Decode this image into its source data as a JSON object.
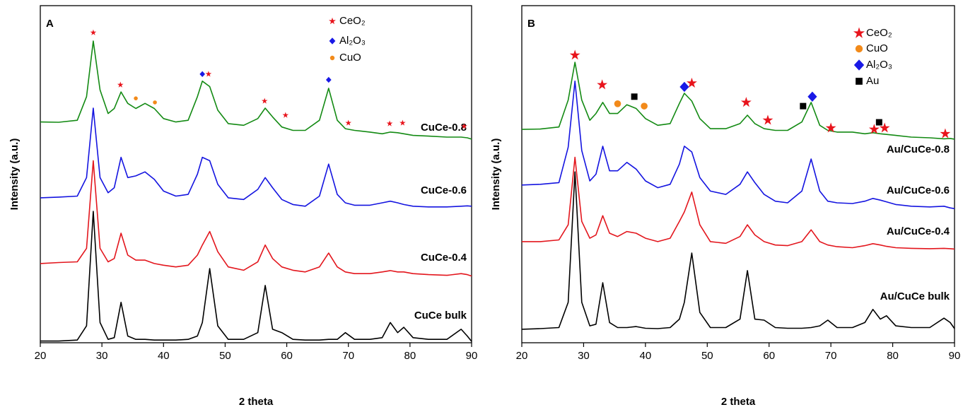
{
  "chart_data": [
    {
      "type": "line",
      "panel": "A",
      "xlabel": "2 theta",
      "ylabel": "Intensity (a.u.)",
      "xlim": [
        20,
        90
      ],
      "xticks": [
        20,
        30,
        40,
        50,
        60,
        70,
        80,
        90
      ],
      "ylim": [
        0,
        100
      ],
      "x": [
        20,
        23,
        26,
        27.5,
        28.6,
        29.7,
        31,
        32,
        33.1,
        34.2,
        35.5,
        37,
        38.5,
        40,
        42,
        44,
        45.5,
        46.3,
        47.5,
        48.8,
        50.5,
        53,
        55.3,
        56.5,
        57.7,
        59.2,
        61,
        63,
        65.3,
        66.8,
        68.2,
        69.5,
        71,
        73.5,
        75.5,
        76.8,
        78,
        79,
        80.5,
        83,
        86,
        88.3,
        89.3,
        90
      ],
      "series": [
        {
          "name": "CuCe bulk",
          "color": "#000000",
          "values": [
            0.5,
            0.5,
            0.8,
            5,
            39,
            6,
            1,
            1.5,
            12,
            2,
            1,
            1,
            0.8,
            0.8,
            0.8,
            1,
            2,
            6,
            22,
            5,
            1,
            1,
            3,
            17,
            4,
            3,
            1,
            0.8,
            0.8,
            1,
            1,
            3,
            1,
            1,
            1.5,
            6,
            3,
            4.6,
            1.5,
            1,
            1,
            4,
            2,
            0.4
          ]
        },
        {
          "name": "CuCe-0.4",
          "color": "#e3161d",
          "values": [
            23.5,
            23.8,
            24,
            28,
            54,
            28,
            24,
            25,
            32.5,
            26,
            24.5,
            24.5,
            23.5,
            23,
            22.5,
            23,
            26,
            29,
            33,
            27,
            22.5,
            21.5,
            24,
            29,
            25,
            22.5,
            21.5,
            21,
            22.5,
            26.6,
            22.5,
            21,
            20.5,
            20.5,
            21,
            21.4,
            21,
            21,
            20.5,
            20.2,
            20,
            20.5,
            20.2,
            19.8
          ]
        },
        {
          "name": "CuCe-0.6",
          "color": "#1414e0",
          "values": [
            43,
            43.2,
            43.5,
            49,
            69.6,
            49,
            44.5,
            46,
            55,
            49,
            49.5,
            50.7,
            48.5,
            45,
            43.5,
            44,
            50,
            55,
            54,
            47,
            43,
            42.5,
            45.5,
            49,
            46,
            42.5,
            41,
            40.5,
            43.5,
            53,
            44,
            41.5,
            40.8,
            40.8,
            41.5,
            42,
            41.5,
            41,
            40.5,
            40.3,
            40.3,
            40.5,
            40.6,
            40.5
          ]
        },
        {
          "name": "CuCe-0.8",
          "color": "#138a13",
          "values": [
            65.5,
            65.4,
            66,
            73,
            89.5,
            75,
            68,
            69.5,
            74.4,
            71,
            69.5,
            71,
            69.5,
            66.5,
            65.5,
            66,
            73,
            77.6,
            76,
            69,
            65,
            64.5,
            66.5,
            69.6,
            67,
            64,
            63,
            63,
            66,
            75.5,
            66,
            63.5,
            63,
            62.5,
            62,
            62.5,
            62.3,
            62,
            61.5,
            61.3,
            61,
            61,
            60.8,
            60.4
          ]
        }
      ],
      "markers": [
        {
          "name": "CeO₂",
          "symbol": "star",
          "color": "#e8141c",
          "x": [
            28.6,
            33,
            47.3,
            56.4,
            59.8,
            70,
            76.7,
            78.8,
            88.8
          ],
          "y": [
            92,
            76.5,
            79.7,
            71.7,
            67.5,
            65.2,
            65,
            65.2,
            64.2
          ]
        },
        {
          "name": "Al₂O₃",
          "symbol": "diamond",
          "color": "#1919e6",
          "x": [
            46.3,
            66.8
          ],
          "y": [
            79.7,
            78
          ]
        },
        {
          "name": "CuO",
          "symbol": "circle",
          "color": "#f28a1a",
          "x": [
            35.5,
            38.6
          ],
          "y": [
            72.5,
            71.3
          ]
        }
      ]
    },
    {
      "type": "line",
      "panel": "B",
      "xlabel": "2 theta",
      "ylabel": "Intensity (a.u.)",
      "xlim": [
        20,
        90
      ],
      "xticks": [
        20,
        30,
        40,
        50,
        60,
        70,
        80,
        90
      ],
      "ylim": [
        0,
        100
      ],
      "x": [
        20,
        23,
        26,
        27.5,
        28.6,
        29.7,
        31,
        32,
        33.1,
        34.2,
        35.5,
        37,
        38.5,
        40,
        42,
        44,
        45.5,
        46.3,
        47.5,
        48.8,
        50.5,
        53,
        55.3,
        56.5,
        57.7,
        59.2,
        61,
        63,
        65.3,
        66.8,
        68.2,
        69.5,
        71,
        73.5,
        75.5,
        76.8,
        78,
        79,
        80.5,
        83,
        86,
        88.3,
        89.3,
        90
      ],
      "series": [
        {
          "name": "Au/CuCe bulk",
          "color": "#000000",
          "values": [
            4,
            4.2,
            4.5,
            12,
            50.7,
            12,
            5,
            5.5,
            17.8,
            6,
            4.5,
            4.5,
            4.8,
            4.3,
            4.2,
            4.5,
            7,
            12,
            26.6,
            9,
            4.5,
            4.5,
            7,
            21.4,
            7,
            6.7,
            4.5,
            4.3,
            4.3,
            4.5,
            5,
            6.7,
            4.5,
            4.5,
            6,
            9.9,
            7,
            8,
            5,
            4.5,
            4.5,
            7.3,
            6,
            4.2
          ]
        },
        {
          "name": "Au/CuCe-0.4",
          "color": "#e3161d",
          "values": [
            30,
            30,
            30.5,
            35,
            55,
            36,
            31,
            32,
            37.7,
            32.5,
            31.5,
            33,
            32.5,
            31,
            30,
            31,
            36,
            38.8,
            44.7,
            35,
            30,
            29.5,
            31.5,
            35,
            32,
            30,
            29,
            28.8,
            30,
            33.5,
            30,
            29,
            28.5,
            28.2,
            28.8,
            29.4,
            29,
            28.6,
            28.2,
            28,
            27.9,
            28,
            27.9,
            27.8
          ]
        },
        {
          "name": "Au/CuCe-0.6",
          "color": "#1414e0",
          "values": [
            46.8,
            47,
            47.5,
            58,
            77.6,
            57,
            48,
            50,
            58.3,
            51,
            51,
            53.5,
            51.5,
            48,
            46,
            47,
            53,
            58.3,
            56.6,
            49,
            45,
            44,
            47,
            50.7,
            47.5,
            44,
            42,
            41.5,
            45,
            54.5,
            45,
            42,
            41.5,
            41.3,
            42,
            42.8,
            42.3,
            41.8,
            41,
            40.5,
            40.3,
            40.5,
            40,
            39.8
          ]
        },
        {
          "name": "Au/CuCe-0.8",
          "color": "#138a13",
          "values": [
            63.3,
            63.4,
            64,
            72,
            83.2,
            72,
            66,
            68,
            71.3,
            68,
            68,
            70.6,
            69.5,
            66.5,
            64.5,
            65,
            71,
            74,
            71.7,
            66.5,
            63.5,
            63.5,
            65,
            67.5,
            65,
            63.5,
            63,
            63,
            65.5,
            71.3,
            64.5,
            63,
            62.5,
            62.5,
            62,
            62.3,
            62,
            61.8,
            61.5,
            61,
            60.8,
            60.5,
            60.6,
            60.4
          ]
        }
      ],
      "markers": [
        {
          "name": "CeO₂",
          "symbol": "star",
          "color": "#e8141c",
          "x": [
            28.6,
            33,
            47.5,
            56.3,
            59.8,
            70,
            77,
            78.7,
            88.5
          ],
          "y": [
            85.3,
            76.5,
            77,
            71.3,
            66,
            63.7,
            63.3,
            63.7,
            62
          ]
        },
        {
          "name": "CuO",
          "symbol": "circle",
          "color": "#f28a1a",
          "x": [
            35.5,
            39.8
          ],
          "y": [
            70.9,
            70.2
          ]
        },
        {
          "name": "Al₂O₃",
          "symbol": "diamond",
          "color": "#1919e6",
          "x": [
            46.3,
            67
          ],
          "y": [
            75.9,
            73
          ]
        },
        {
          "name": "Au",
          "symbol": "square",
          "color": "#000000",
          "x": [
            38.2,
            65.5,
            77.8
          ],
          "y": [
            73,
            70.2,
            65.4
          ]
        }
      ]
    }
  ]
}
